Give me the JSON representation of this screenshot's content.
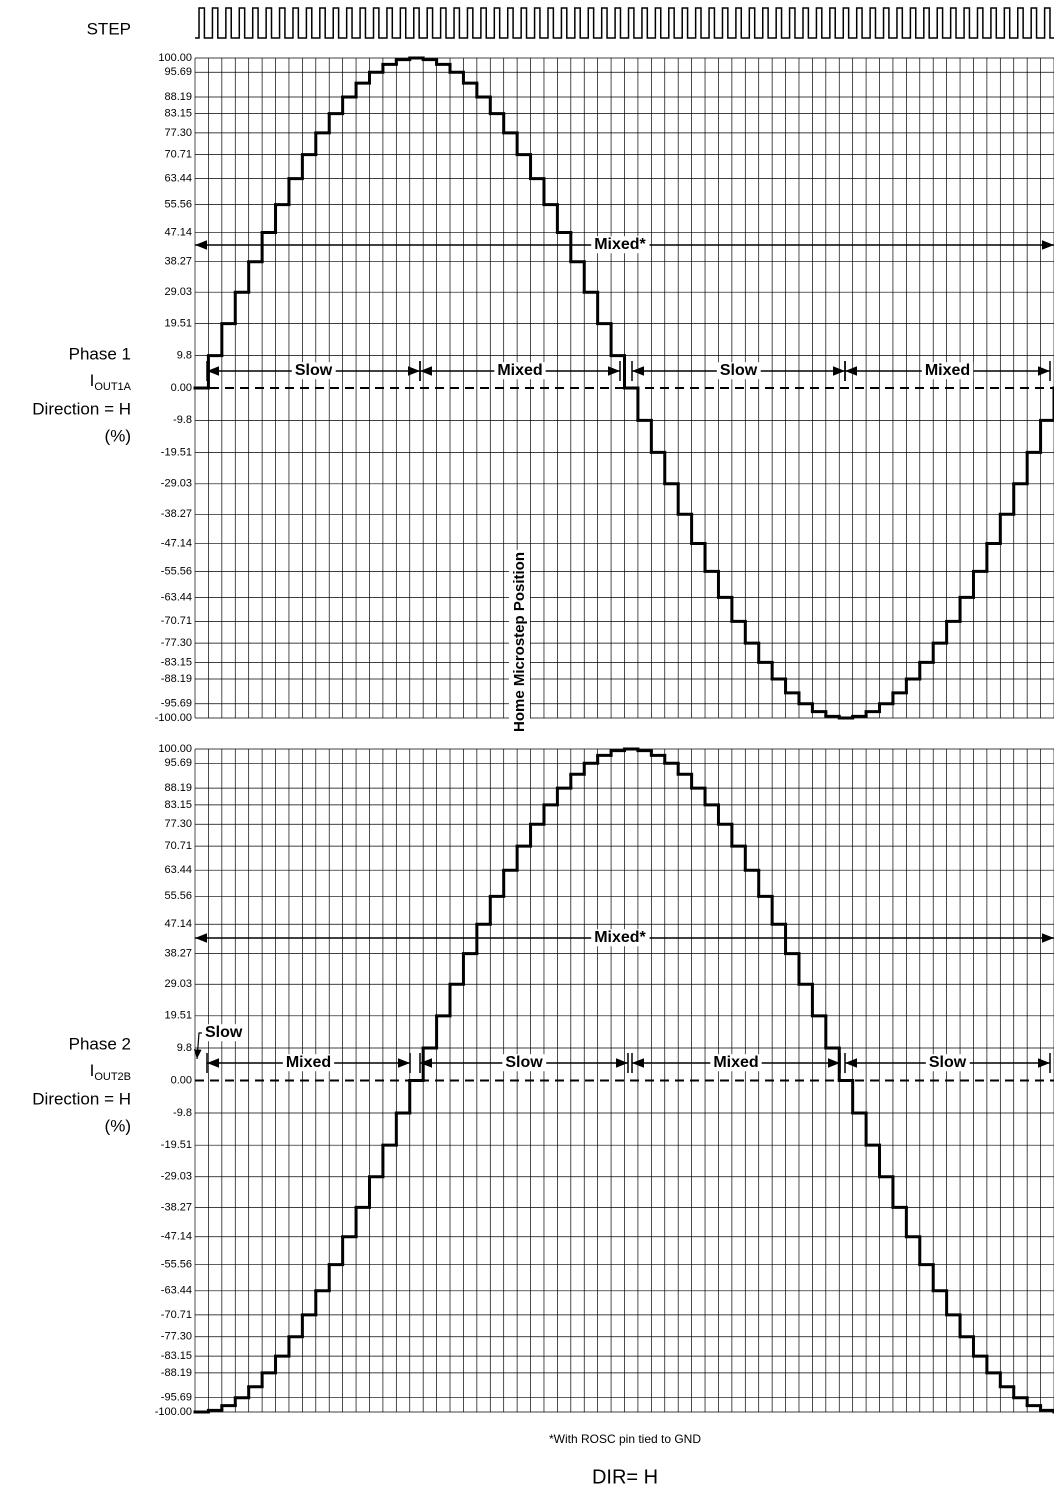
{
  "step_label": "STEP",
  "home_label": "Home Microstep Position",
  "footnote": "*With ROSC pin tied to GND",
  "dir_label": "DIR= H",
  "chart_data": [
    {
      "type": "step",
      "ylabel": {
        "lines": [
          "Phase 1",
          "Direction = H",
          "(%)"
        ],
        "symbol": "I",
        "subscript": "OUT1A"
      },
      "ylim": [
        -100,
        100
      ],
      "yticks": [
        {
          "value": 100,
          "label": "100.00"
        },
        95.69,
        88.19,
        83.15,
        {
          "value": 77.3,
          "label": "77.30"
        },
        70.71,
        63.44,
        55.56,
        47.14,
        38.27,
        29.03,
        19.51,
        9.8,
        {
          "value": 0,
          "label": "0.00"
        },
        -9.8,
        -19.51,
        -29.03,
        -38.27,
        -47.14,
        -55.56,
        -63.44,
        -70.71,
        {
          "value": -77.3,
          "label": "-77.30"
        },
        -83.15,
        -88.19,
        -95.69,
        {
          "value": -100,
          "label": "-100.00"
        }
      ],
      "values": [
        0,
        9.8,
        19.51,
        29.03,
        38.27,
        47.14,
        55.56,
        63.44,
        70.71,
        77.3,
        83.15,
        88.19,
        92.39,
        95.69,
        98.08,
        99.52,
        100,
        99.52,
        98.08,
        95.69,
        92.39,
        88.19,
        83.15,
        77.3,
        70.71,
        63.44,
        55.56,
        47.14,
        38.27,
        29.03,
        19.51,
        9.8,
        0,
        -9.8,
        -19.51,
        -29.03,
        -38.27,
        -47.14,
        -55.56,
        -63.44,
        -70.71,
        -77.3,
        -83.15,
        -88.19,
        -92.39,
        -95.69,
        -98.08,
        -99.52,
        -100,
        -99.52,
        -98.08,
        -95.69,
        -92.39,
        -88.19,
        -83.15,
        -77.3,
        -70.71,
        -63.44,
        -55.56,
        -47.14,
        -38.27,
        -29.03,
        -19.51,
        -9.8,
        0
      ],
      "annotations": [
        "Mixed*",
        "Slow",
        "Mixed",
        "Slow",
        "Mixed"
      ]
    },
    {
      "type": "step",
      "ylabel": {
        "lines": [
          "Phase 2",
          "Direction = H",
          "(%)"
        ],
        "symbol": "I",
        "subscript": "OUT2B"
      },
      "ylim": [
        -100,
        100
      ],
      "yticks": [
        {
          "value": 100,
          "label": "100.00"
        },
        95.69,
        88.19,
        83.15,
        {
          "value": 77.3,
          "label": "77.30"
        },
        70.71,
        63.44,
        55.56,
        47.14,
        38.27,
        29.03,
        19.51,
        9.8,
        {
          "value": 0,
          "label": "0.00"
        },
        -9.8,
        -19.51,
        -29.03,
        -38.27,
        -47.14,
        -55.56,
        -63.44,
        -70.71,
        {
          "value": -77.3,
          "label": "-77.30"
        },
        -83.15,
        -88.19,
        -95.69,
        {
          "value": -100,
          "label": "-100.00"
        }
      ],
      "values": [
        -100,
        -99.52,
        -98.08,
        -95.69,
        -92.39,
        -88.19,
        -83.15,
        -77.3,
        -70.71,
        -63.44,
        -55.56,
        -47.14,
        -38.27,
        -29.03,
        -19.51,
        -9.8,
        0,
        9.8,
        19.51,
        29.03,
        38.27,
        47.14,
        55.56,
        63.44,
        70.71,
        77.3,
        83.15,
        88.19,
        92.39,
        95.69,
        98.08,
        99.52,
        100,
        99.52,
        98.08,
        95.69,
        92.39,
        88.19,
        83.15,
        77.3,
        70.71,
        63.44,
        55.56,
        47.14,
        38.27,
        29.03,
        19.51,
        9.8,
        0,
        -9.8,
        -19.51,
        -29.03,
        -38.27,
        -47.14,
        -55.56,
        -63.44,
        -70.71,
        -77.3,
        -83.15,
        -88.19,
        -92.39,
        -95.69,
        -98.08,
        -99.52,
        -100
      ],
      "annotations": [
        "Mixed*",
        "Slow",
        "Mixed",
        "Slow",
        "Mixed",
        "Slow"
      ]
    }
  ]
}
